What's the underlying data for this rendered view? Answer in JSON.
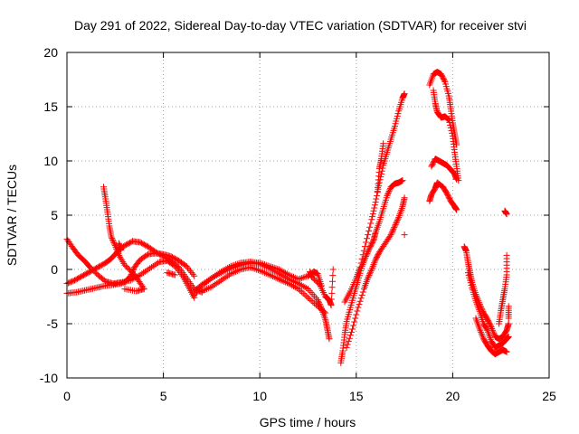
{
  "chart_data": {
    "type": "scatter",
    "title": "Day 291 of 2022, Sidereal Day-to-day VTEC variation (SDTVAR) for receiver stvi",
    "xlabel": "GPS time / hours",
    "ylabel": "SDTVAR / TECUs",
    "xlim": [
      0,
      25
    ],
    "ylim": [
      -10,
      20
    ],
    "x_ticks": [
      "0",
      "5",
      "10",
      "15",
      "20",
      "25"
    ],
    "y_ticks": [
      "-10",
      "-5",
      "0",
      "5",
      "10",
      "15",
      "20"
    ],
    "grid": true,
    "marker": "plus",
    "color": "#ff0000",
    "series": [
      {
        "points": [
          [
            0,
            2.8
          ],
          [
            0.3,
            2.0
          ],
          [
            0.6,
            1.3
          ],
          [
            0.9,
            0.8
          ],
          [
            1.2,
            0.2
          ],
          [
            1.6,
            -0.5
          ],
          [
            2.0,
            -1.1
          ],
          [
            2.4,
            -1.3
          ],
          [
            2.8,
            -1.2
          ],
          [
            3.3,
            -1.0
          ],
          [
            3.8,
            -0.5
          ],
          [
            4.3,
            0.1
          ],
          [
            4.8,
            0.7
          ],
          [
            5.2,
            0.8
          ],
          [
            5.6,
            0.3
          ],
          [
            6.0,
            -0.6
          ],
          [
            6.3,
            -1.6
          ],
          [
            6.6,
            -2.6
          ]
        ]
      },
      {
        "points": [
          [
            0,
            -1.3
          ],
          [
            0.4,
            -1.0
          ],
          [
            0.8,
            -0.6
          ],
          [
            1.2,
            -0.2
          ],
          [
            1.6,
            0.2
          ],
          [
            2.0,
            0.6
          ],
          [
            2.3,
            1.0
          ],
          [
            2.6,
            1.6
          ],
          [
            3.0,
            2.2
          ],
          [
            3.4,
            2.6
          ],
          [
            3.8,
            2.5
          ],
          [
            4.2,
            2.1
          ],
          [
            4.6,
            1.6
          ],
          [
            5.0,
            1.2
          ],
          [
            5.4,
            0.8
          ],
          [
            5.8,
            0.2
          ],
          [
            6.2,
            -0.8
          ],
          [
            6.6,
            -1.8
          ],
          [
            7.0,
            -2.1
          ]
        ]
      },
      {
        "points": [
          [
            0,
            -2.2
          ],
          [
            0.5,
            -2.1
          ],
          [
            1.0,
            -1.9
          ],
          [
            1.5,
            -1.7
          ],
          [
            2.0,
            -1.5
          ],
          [
            2.5,
            -1.4
          ],
          [
            3.0,
            -1.2
          ],
          [
            3.3,
            -0.6
          ],
          [
            3.5,
            0.2
          ],
          [
            3.8,
            0.9
          ],
          [
            4.2,
            1.4
          ],
          [
            4.6,
            1.5
          ],
          [
            5.0,
            1.4
          ],
          [
            5.4,
            1.2
          ],
          [
            5.8,
            0.8
          ],
          [
            6.2,
            0.3
          ],
          [
            6.6,
            -0.6
          ]
        ]
      },
      {
        "points": [
          [
            1.9,
            7.6
          ],
          [
            2.0,
            6.5
          ],
          [
            2.1,
            5.3
          ],
          [
            2.2,
            4.0
          ],
          [
            2.3,
            3.0
          ],
          [
            2.5,
            2.2
          ],
          [
            2.7,
            1.3
          ],
          [
            3.0,
            0.4
          ],
          [
            3.4,
            -0.3
          ],
          [
            3.7,
            -1.0
          ],
          [
            4.0,
            -1.8
          ],
          [
            3.6,
            -2.0
          ],
          [
            3.0,
            -1.8
          ]
        ]
      },
      {
        "points": [
          [
            2.7,
            2.4
          ],
          [
            2.8,
            1.8
          ],
          [
            5.2,
            -0.3
          ],
          [
            5.6,
            -0.5
          ]
        ]
      },
      {
        "points": [
          [
            6.6,
            -2.4
          ],
          [
            7.0,
            -1.5
          ],
          [
            7.5,
            -0.8
          ],
          [
            8.0,
            -0.3
          ],
          [
            8.5,
            0.1
          ],
          [
            9.0,
            0.4
          ],
          [
            9.5,
            0.6
          ],
          [
            10.0,
            0.5
          ],
          [
            10.5,
            0.1
          ],
          [
            11.0,
            -0.4
          ],
          [
            11.5,
            -0.9
          ],
          [
            12.0,
            -1.3
          ],
          [
            12.5,
            -1.8
          ],
          [
            13.0,
            -2.8
          ],
          [
            13.2,
            -3.6
          ],
          [
            13.4,
            -4.6
          ],
          [
            13.5,
            -5.5
          ],
          [
            13.6,
            -6.4
          ]
        ]
      },
      {
        "points": [
          [
            6.6,
            -2.0
          ],
          [
            7.0,
            -1.4
          ],
          [
            7.5,
            -0.8
          ],
          [
            8.0,
            -0.2
          ],
          [
            8.5,
            0.3
          ],
          [
            9.0,
            0.6
          ],
          [
            9.5,
            0.7
          ],
          [
            10.0,
            0.6
          ],
          [
            10.5,
            0.3
          ],
          [
            11.0,
            0.0
          ],
          [
            11.5,
            -0.5
          ],
          [
            12.0,
            -0.9
          ],
          [
            12.5,
            -0.6
          ],
          [
            12.8,
            -0.2
          ],
          [
            13.0,
            -0.4
          ],
          [
            13.2,
            -1.5
          ]
        ]
      },
      {
        "points": [
          [
            7.0,
            -2.0
          ],
          [
            7.5,
            -1.6
          ],
          [
            8.0,
            -1.0
          ],
          [
            8.5,
            -0.4
          ],
          [
            9.0,
            0.0
          ],
          [
            9.5,
            0.2
          ],
          [
            10.0,
            -0.1
          ],
          [
            10.5,
            -0.5
          ],
          [
            11.0,
            -0.9
          ],
          [
            11.5,
            -1.3
          ],
          [
            12.0,
            -1.8
          ],
          [
            12.5,
            -2.6
          ],
          [
            13.0,
            -3.4
          ],
          [
            13.4,
            -4.0
          ]
        ]
      },
      {
        "points": [
          [
            12.6,
            -0.2
          ],
          [
            12.7,
            -0.7
          ],
          [
            13.1,
            -1.4
          ],
          [
            13.4,
            -2.5
          ],
          [
            13.6,
            -2.8
          ],
          [
            13.7,
            -3.3
          ],
          [
            13.8,
            0.0
          ]
        ]
      },
      {
        "points": [
          [
            14.2,
            -8.6
          ],
          [
            14.3,
            -7.5
          ],
          [
            14.4,
            -6.0
          ],
          [
            14.5,
            -4.8
          ],
          [
            14.7,
            -3.5
          ],
          [
            14.9,
            -2.2
          ],
          [
            15.1,
            -1.0
          ],
          [
            15.3,
            0.3
          ],
          [
            15.5,
            1.2
          ],
          [
            15.7,
            2.0
          ],
          [
            15.9,
            2.7
          ],
          [
            16.0,
            3.4
          ],
          [
            16.2,
            4.4
          ],
          [
            16.4,
            5.6
          ],
          [
            16.6,
            6.8
          ],
          [
            16.8,
            7.6
          ],
          [
            17.0,
            7.9
          ],
          [
            17.2,
            8.0
          ],
          [
            17.4,
            8.2
          ]
        ]
      },
      {
        "points": [
          [
            14.4,
            -3.0
          ],
          [
            14.7,
            -2.0
          ],
          [
            15.0,
            -0.8
          ],
          [
            15.2,
            0.2
          ],
          [
            15.5,
            2.5
          ],
          [
            15.8,
            4.6
          ],
          [
            16.0,
            6.2
          ],
          [
            16.2,
            8.0
          ],
          [
            16.4,
            9.6
          ],
          [
            16.6,
            10.8
          ],
          [
            16.8,
            12.0
          ],
          [
            17.0,
            13.2
          ],
          [
            17.2,
            14.6
          ],
          [
            17.4,
            15.8
          ],
          [
            17.5,
            16.2
          ]
        ]
      },
      {
        "points": [
          [
            14.5,
            -7.2
          ],
          [
            14.8,
            -5.5
          ],
          [
            15.1,
            -3.5
          ],
          [
            15.4,
            -1.8
          ],
          [
            15.6,
            -0.8
          ],
          [
            15.8,
            0.0
          ],
          [
            16.0,
            0.9
          ],
          [
            16.2,
            1.6
          ],
          [
            16.5,
            2.4
          ],
          [
            16.8,
            3.2
          ],
          [
            17.0,
            4.0
          ],
          [
            17.2,
            4.8
          ],
          [
            17.4,
            5.8
          ],
          [
            17.5,
            6.6
          ]
        ]
      },
      {
        "points": [
          [
            16.1,
            7.2
          ],
          [
            16.2,
            9.3
          ],
          [
            16.3,
            10.2
          ],
          [
            16.4,
            11.6
          ],
          [
            17.5,
            3.2
          ]
        ]
      },
      {
        "points": [
          [
            18.8,
            17.0
          ],
          [
            19.0,
            18.0
          ],
          [
            19.2,
            18.2
          ],
          [
            19.4,
            18.0
          ],
          [
            19.6,
            17.3
          ],
          [
            19.8,
            16.0
          ],
          [
            19.9,
            14.8
          ],
          [
            20.0,
            13.5
          ],
          [
            20.1,
            12.5
          ],
          [
            20.2,
            11.5
          ]
        ]
      },
      {
        "points": [
          [
            19.0,
            16.5
          ],
          [
            19.1,
            15.3
          ],
          [
            19.2,
            14.5
          ],
          [
            19.4,
            14.0
          ],
          [
            19.6,
            14.1
          ],
          [
            19.8,
            13.8
          ],
          [
            20.0,
            12.3
          ],
          [
            20.1,
            10.8
          ],
          [
            20.2,
            9.5
          ],
          [
            20.3,
            8.2
          ]
        ]
      },
      {
        "points": [
          [
            18.9,
            9.5
          ],
          [
            19.1,
            10.2
          ],
          [
            19.3,
            10.0
          ],
          [
            19.5,
            9.8
          ],
          [
            19.7,
            9.6
          ],
          [
            19.9,
            9.2
          ],
          [
            20.1,
            8.8
          ],
          [
            20.2,
            8.3
          ]
        ]
      },
      {
        "points": [
          [
            18.8,
            6.3
          ],
          [
            18.9,
            6.9
          ],
          [
            19.1,
            7.5
          ],
          [
            19.2,
            8.0
          ],
          [
            19.5,
            7.6
          ],
          [
            19.7,
            7.0
          ],
          [
            19.9,
            6.3
          ],
          [
            20.1,
            5.8
          ],
          [
            20.2,
            5.5
          ]
        ]
      },
      {
        "points": [
          [
            20.6,
            2.1
          ],
          [
            20.7,
            1.7
          ],
          [
            20.8,
            0.6
          ],
          [
            20.9,
            -0.3
          ],
          [
            21.0,
            -1.2
          ],
          [
            21.2,
            -2.3
          ],
          [
            21.4,
            -3.2
          ],
          [
            21.6,
            -4.0
          ],
          [
            21.8,
            -4.6
          ],
          [
            22.0,
            -5.3
          ],
          [
            22.2,
            -6.2
          ],
          [
            22.4,
            -6.4
          ],
          [
            22.6,
            -6.2
          ],
          [
            22.8,
            -5.6
          ],
          [
            22.9,
            -5.0
          ]
        ]
      },
      {
        "points": [
          [
            20.8,
            -0.3
          ],
          [
            21.0,
            -1.7
          ],
          [
            21.2,
            -2.9
          ],
          [
            21.4,
            -3.9
          ],
          [
            21.6,
            -5.0
          ],
          [
            21.8,
            -5.6
          ],
          [
            22.0,
            -6.6
          ],
          [
            22.2,
            -7.2
          ],
          [
            22.4,
            -7.0
          ],
          [
            22.6,
            -6.8
          ],
          [
            22.8,
            -6.4
          ],
          [
            22.9,
            -6.2
          ]
        ]
      },
      {
        "points": [
          [
            21.2,
            -4.5
          ],
          [
            21.4,
            -5.5
          ],
          [
            21.6,
            -6.4
          ],
          [
            21.8,
            -7.0
          ],
          [
            22.0,
            -7.5
          ],
          [
            22.2,
            -7.8
          ],
          [
            22.4,
            -7.6
          ],
          [
            22.6,
            -7.4
          ],
          [
            22.8,
            -7.6
          ]
        ]
      },
      {
        "points": [
          [
            22.4,
            -5.0
          ],
          [
            22.5,
            -3.8
          ],
          [
            22.6,
            -2.8
          ],
          [
            22.7,
            -1.8
          ],
          [
            22.8,
            -0.5
          ],
          [
            22.8,
            1.3
          ],
          [
            22.9,
            -3.4
          ],
          [
            22.9,
            -4.5
          ],
          [
            22.7,
            5.4
          ],
          [
            22.8,
            5.1
          ]
        ]
      }
    ]
  }
}
